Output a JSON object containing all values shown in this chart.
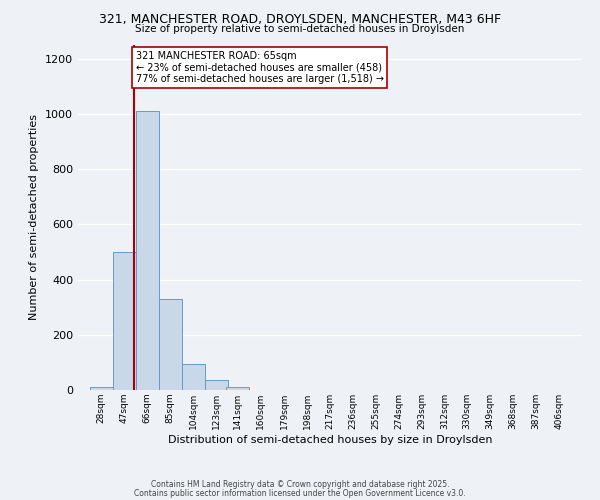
{
  "title_line1": "321, MANCHESTER ROAD, DROYLSDEN, MANCHESTER, M43 6HF",
  "title_line2": "Size of property relative to semi-detached houses in Droylsden",
  "xlabel": "Distribution of semi-detached houses by size in Droylsden",
  "ylabel": "Number of semi-detached properties",
  "bin_labels": [
    "28sqm",
    "47sqm",
    "66sqm",
    "85sqm",
    "104sqm",
    "123sqm",
    "141sqm",
    "160sqm",
    "179sqm",
    "198sqm",
    "217sqm",
    "236sqm",
    "255sqm",
    "274sqm",
    "293sqm",
    "312sqm",
    "330sqm",
    "349sqm",
    "368sqm",
    "387sqm",
    "406sqm"
  ],
  "bar_heights": [
    10,
    500,
    1010,
    330,
    95,
    35,
    10,
    0,
    0,
    0,
    0,
    0,
    0,
    0,
    0,
    0,
    0,
    0,
    0,
    0,
    0
  ],
  "bar_color": "#c8d8e8",
  "bar_edgecolor": "#6699cc",
  "property_line_x": 65,
  "property_line_color": "#aa0000",
  "annotation_text": "321 MANCHESTER ROAD: 65sqm\n← 23% of semi-detached houses are smaller (458)\n77% of semi-detached houses are larger (1,518) →",
  "annotation_box_edgecolor": "#aa0000",
  "annotation_box_facecolor": "#ffffff",
  "ylim": [
    0,
    1250
  ],
  "yticks": [
    0,
    200,
    400,
    600,
    800,
    1000,
    1200
  ],
  "footer_line1": "Contains HM Land Registry data © Crown copyright and database right 2025.",
  "footer_line2": "Contains public sector information licensed under the Open Government Licence v3.0.",
  "background_color": "#eef2f6",
  "plot_background_color": "#eef2f6",
  "grid_color": "#ffffff",
  "bin_width": 19
}
